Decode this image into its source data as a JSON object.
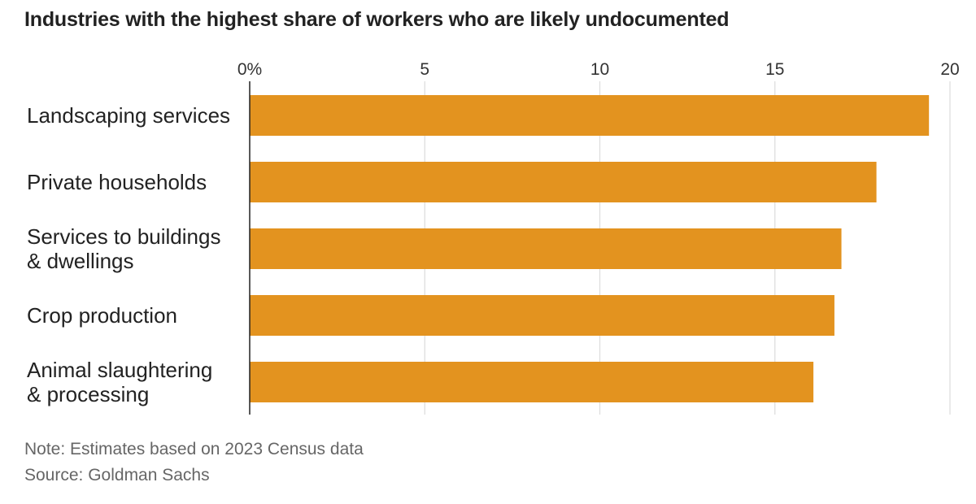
{
  "header": {
    "title": "Industries with the highest share of workers who are likely undocumented"
  },
  "footer": {
    "note": "Note: Estimates based on 2023 Census data",
    "source": "Source: Goldman Sachs"
  },
  "chart_data": {
    "type": "bar",
    "orientation": "horizontal",
    "title": "Industries with the highest share of workers who are likely undocumented",
    "categories": [
      [
        "Landscaping services"
      ],
      [
        "Private households"
      ],
      [
        "Services to buildings",
        "& dwellings"
      ],
      [
        "Crop production"
      ],
      [
        "Animal slaughtering",
        "& processing"
      ]
    ],
    "values": [
      19.4,
      17.9,
      16.9,
      16.7,
      16.1
    ],
    "xlim": [
      0,
      20
    ],
    "xticks": [
      0,
      5,
      10,
      15,
      20
    ],
    "xtick_labels": [
      "0%",
      "5",
      "10",
      "15",
      "20"
    ],
    "xlabel": "",
    "ylabel": "",
    "bar_color": "#e3931f",
    "grid": true,
    "axis_position": "top"
  }
}
